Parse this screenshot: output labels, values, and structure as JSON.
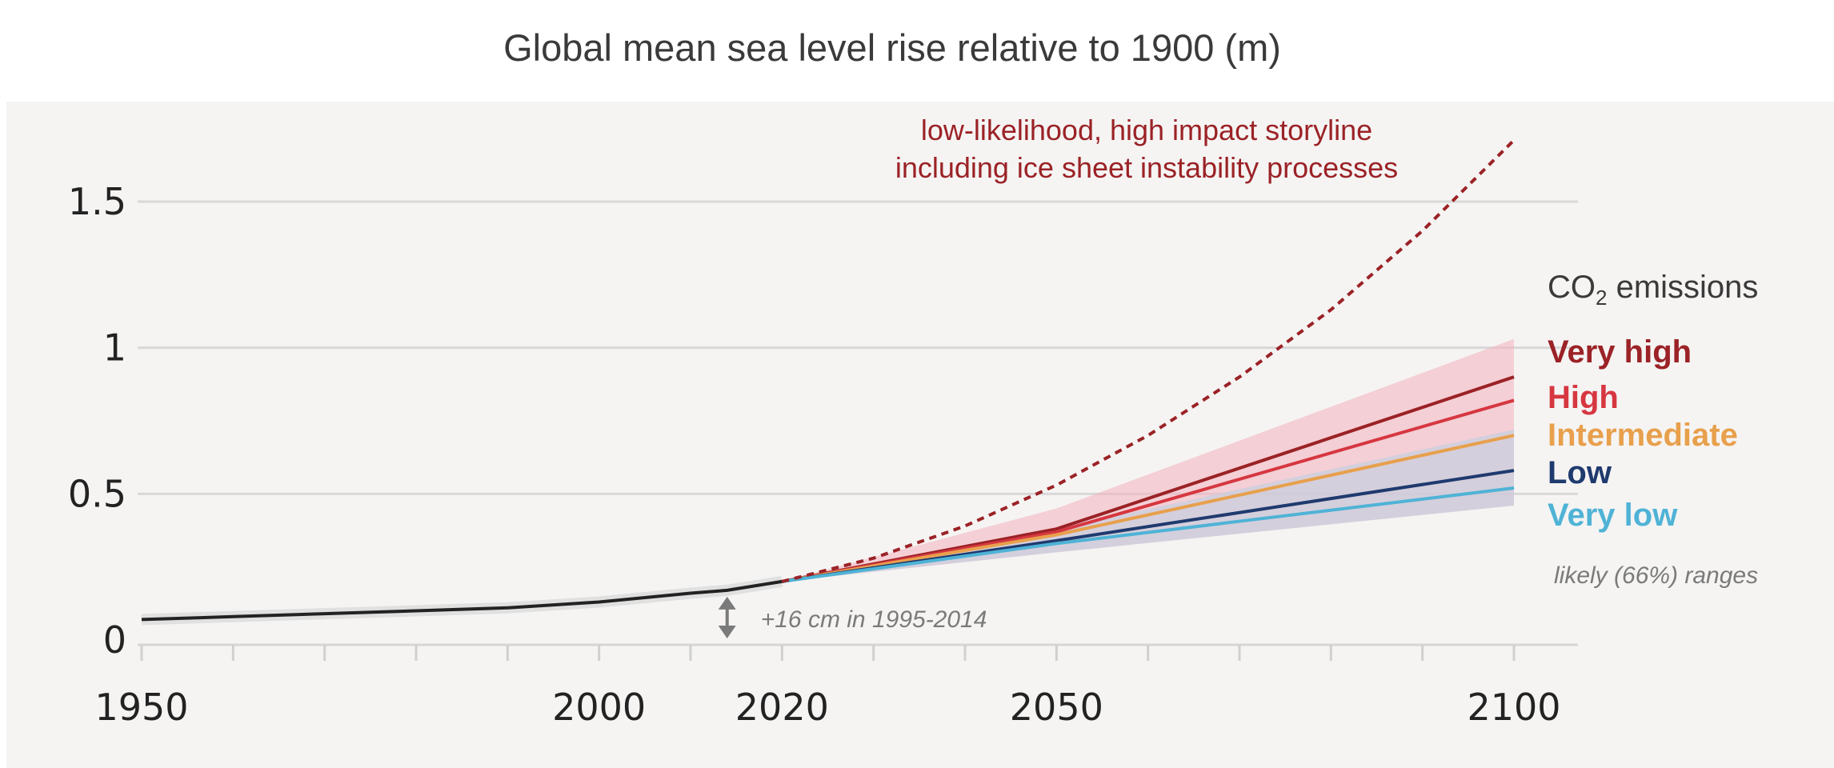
{
  "chart_data": {
    "type": "line",
    "title": "Global mean sea level rise relative to 1900 (m)",
    "xlabel": "",
    "ylabel": "",
    "xlim": [
      1950,
      2100
    ],
    "ylim": [
      0,
      1.5
    ],
    "grid": true,
    "x_ticks": [
      1950,
      2000,
      2020,
      2050,
      2100
    ],
    "x_tick_labels": [
      "1950",
      "2000",
      "2020",
      "2050",
      "2100"
    ],
    "y_ticks": [
      0,
      0.5,
      1,
      1.5
    ],
    "y_tick_labels": [
      "0",
      "0.5",
      "1",
      "1.5"
    ],
    "observed": {
      "x": [
        1950,
        1960,
        1970,
        1980,
        1990,
        2000,
        2010,
        2014,
        2020
      ],
      "y": [
        0.07,
        0.08,
        0.09,
        0.1,
        0.11,
        0.13,
        0.16,
        0.17,
        0.2
      ]
    },
    "storyline": {
      "label_line1": "low-likelihood, high impact storyline",
      "label_line2": "including ice sheet instability processes",
      "color": "#9b2226",
      "x": [
        2020,
        2030,
        2040,
        2050,
        2060,
        2070,
        2080,
        2090,
        2100
      ],
      "y": [
        0.2,
        0.28,
        0.39,
        0.53,
        0.7,
        0.9,
        1.13,
        1.4,
        1.71
      ]
    },
    "legend_title_main": "CO",
    "legend_title_sub": "2",
    "legend_title_rest": " emissions",
    "range_note": "likely (66%) ranges",
    "range_band": {
      "color": "#f4b6c2",
      "x": [
        2020,
        2050,
        2100
      ],
      "low": [
        0.2,
        0.3,
        0.46
      ],
      "high": [
        0.2,
        0.45,
        1.03
      ]
    },
    "low_band": {
      "color": "#c9cfdd",
      "x": [
        2020,
        2050,
        2100
      ],
      "low": [
        0.2,
        0.3,
        0.46
      ],
      "high": [
        0.2,
        0.38,
        0.72
      ]
    },
    "series": [
      {
        "name": "Very high",
        "color": "#9b2226",
        "x": [
          2020,
          2050,
          2100
        ],
        "y": [
          0.2,
          0.38,
          0.9
        ]
      },
      {
        "name": "High",
        "color": "#d63740",
        "x": [
          2020,
          2050,
          2100
        ],
        "y": [
          0.2,
          0.37,
          0.82
        ]
      },
      {
        "name": "Intermediate",
        "color": "#e8a04c",
        "x": [
          2020,
          2050,
          2100
        ],
        "y": [
          0.2,
          0.36,
          0.7
        ]
      },
      {
        "name": "Low",
        "color": "#1f3a6e",
        "x": [
          2020,
          2050,
          2100
        ],
        "y": [
          0.2,
          0.34,
          0.58
        ]
      },
      {
        "name": "Very low",
        "color": "#4fb3d6",
        "x": [
          2020,
          2050,
          2100
        ],
        "y": [
          0.2,
          0.33,
          0.52
        ]
      }
    ],
    "annotation": {
      "text": "+16 cm in 1995-2014",
      "x": 2014,
      "y_from": 0,
      "y_to": 0.17
    }
  }
}
